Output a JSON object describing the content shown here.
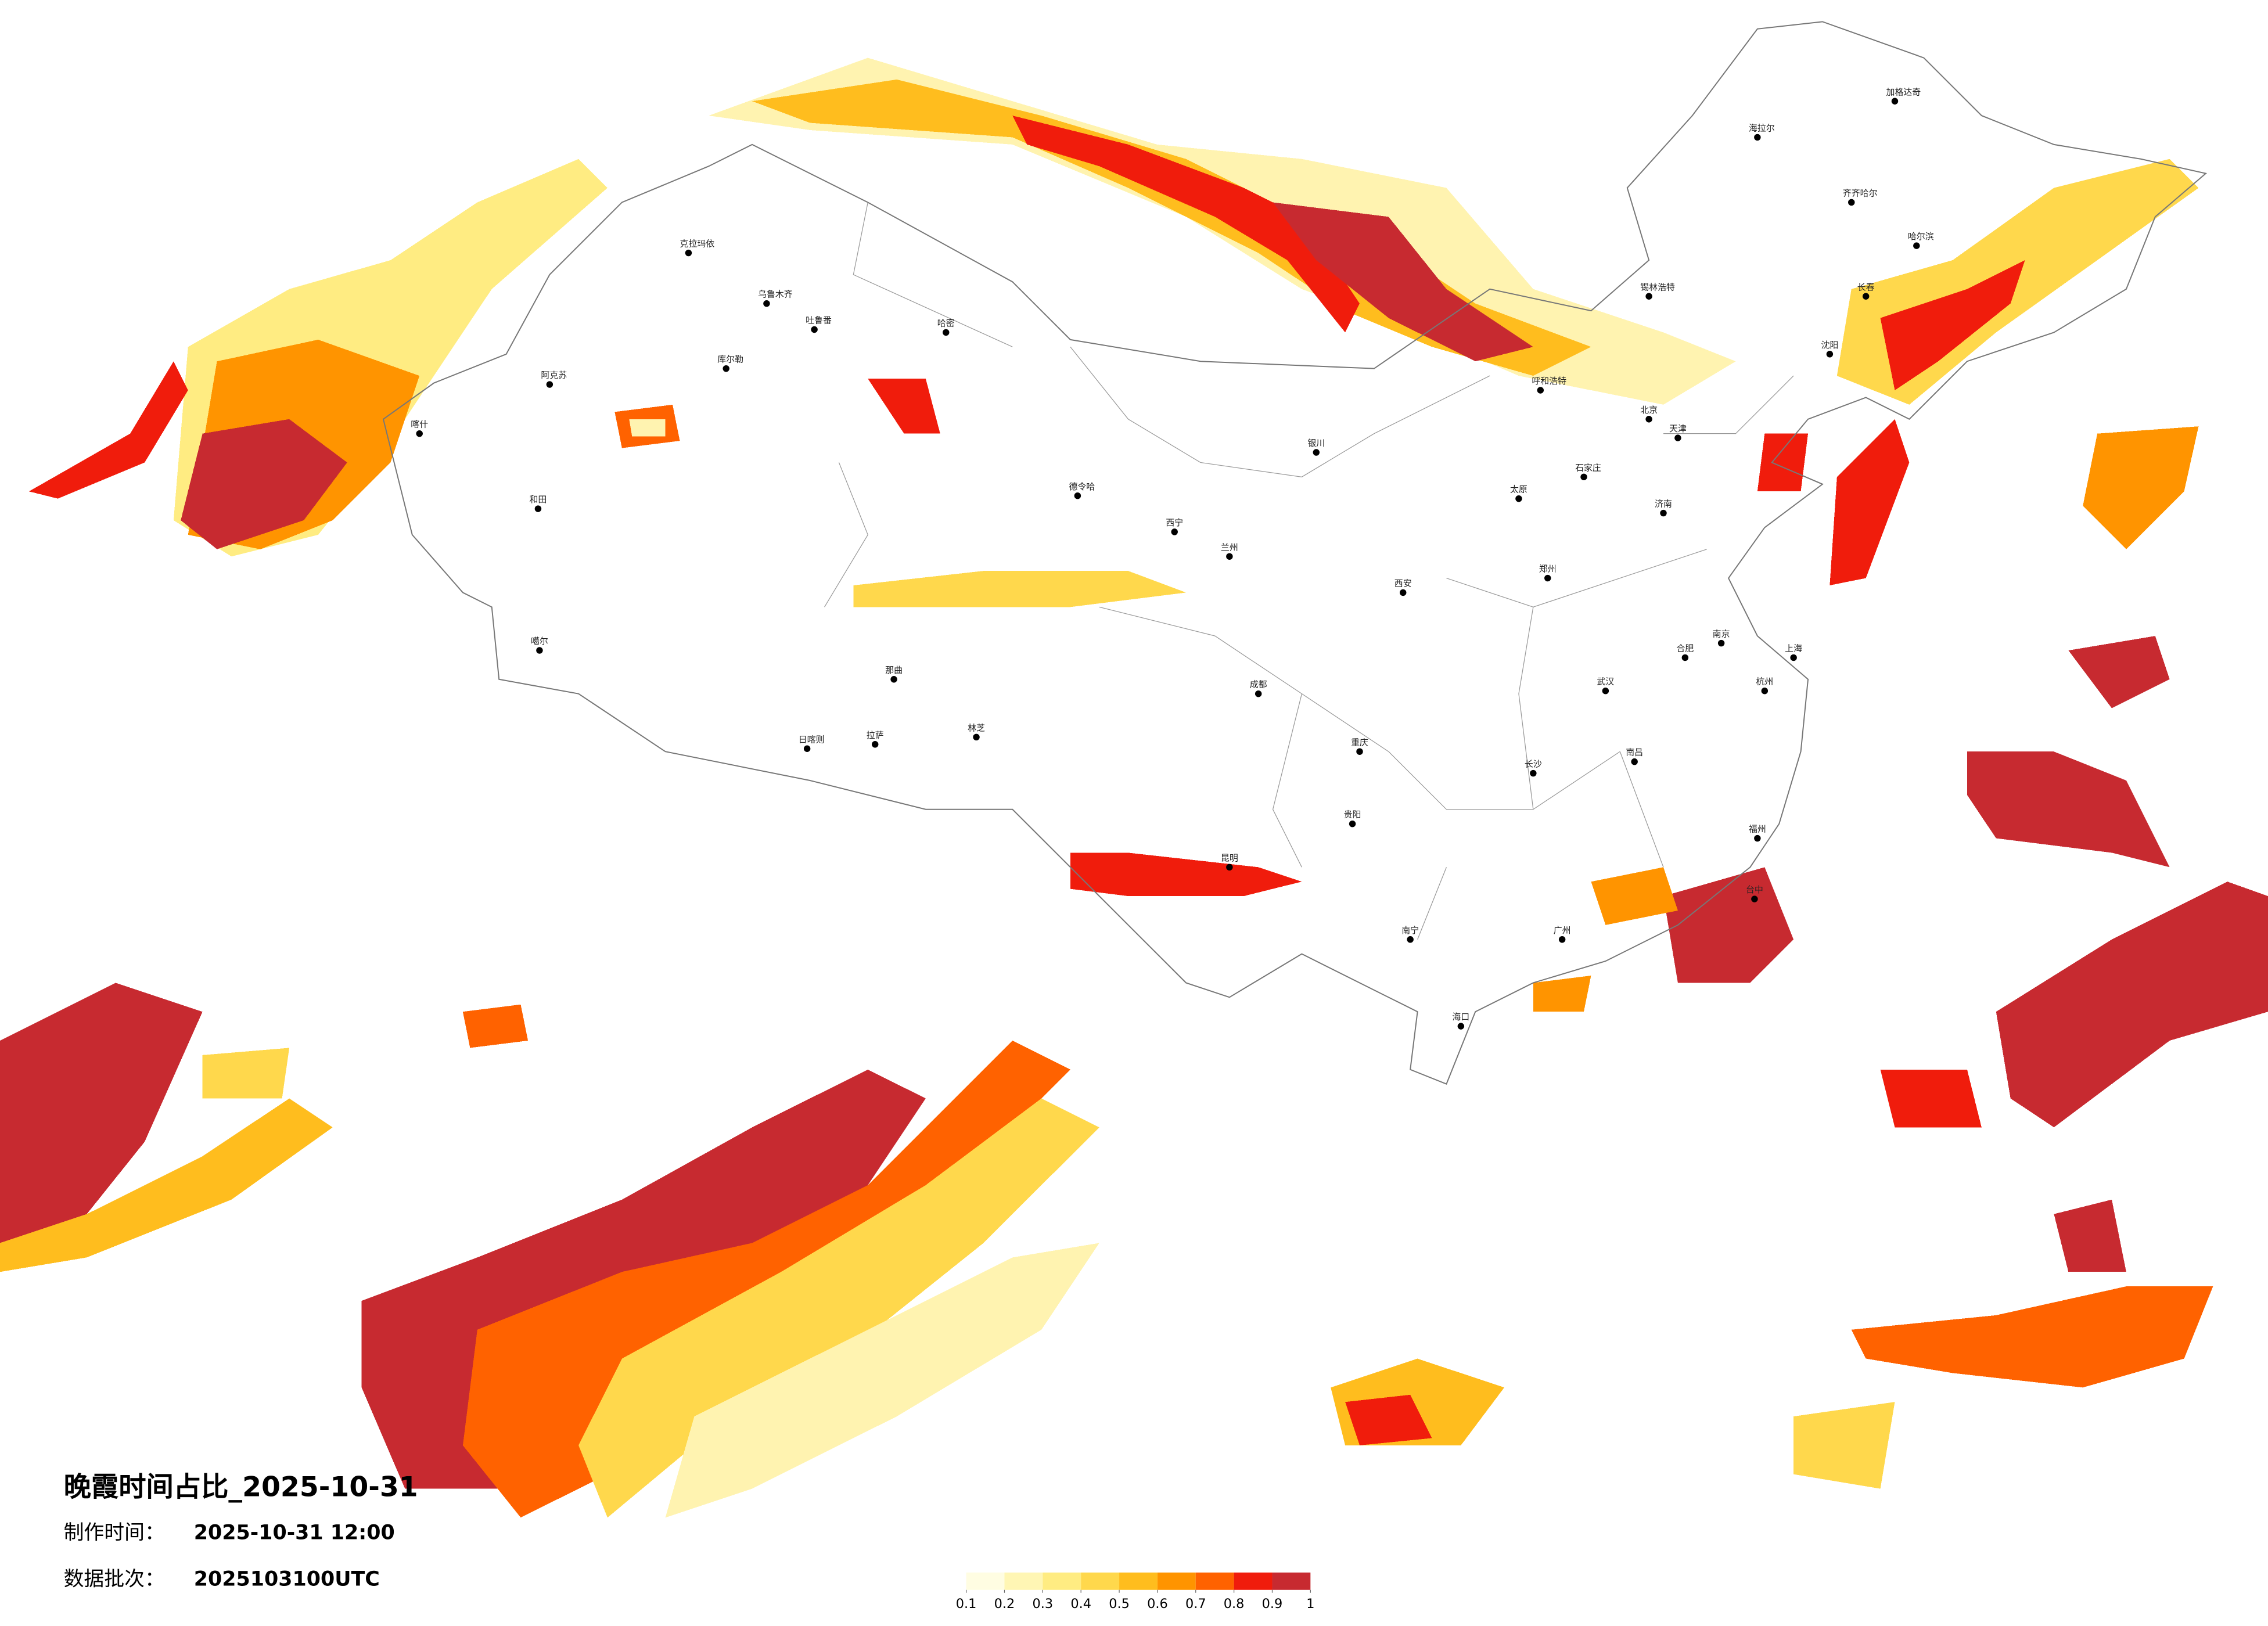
{
  "title": "晚霞时间占比_2025-10-31",
  "info": [
    {
      "label": "制作时间：",
      "value": "2025-10-31 12:00"
    },
    {
      "label": "数据批次：",
      "value": "2025103100UTC"
    }
  ],
  "legend": {
    "ticks": [
      0.1,
      0.2,
      0.3,
      0.4,
      0.5,
      0.6,
      0.7,
      0.8,
      0.9,
      1
    ],
    "colors": [
      "#fffde2",
      "#fff6b4",
      "#ffec82",
      "#ffd84c",
      "#ffbd1e",
      "#ff9400",
      "#ff6200",
      "#f01c0c",
      "#c72a30"
    ]
  },
  "cities": [
    "克拉玛依",
    "乌鲁木齐",
    "吐鲁番",
    "哈密",
    "库尔勒",
    "阿克苏",
    "和田",
    "喀什",
    "噶尔",
    "日喀则",
    "拉萨",
    "林芝",
    "那曲",
    "德令哈",
    "西宁",
    "兰州",
    "银川",
    "呼和浩特",
    "北京",
    "天津",
    "石家庄",
    "太原",
    "郑州",
    "西安",
    "成都",
    "重庆",
    "贵阳",
    "昆明",
    "南宁",
    "长沙",
    "武汉",
    "南昌",
    "合肥",
    "南京",
    "上海",
    "杭州",
    "福州",
    "广州",
    "海口",
    "济南",
    "沈阳",
    "长春",
    "哈尔滨",
    "海拉尔",
    "齐齐哈尔",
    "加格达奇",
    "锡林浩特",
    "台中"
  ]
}
